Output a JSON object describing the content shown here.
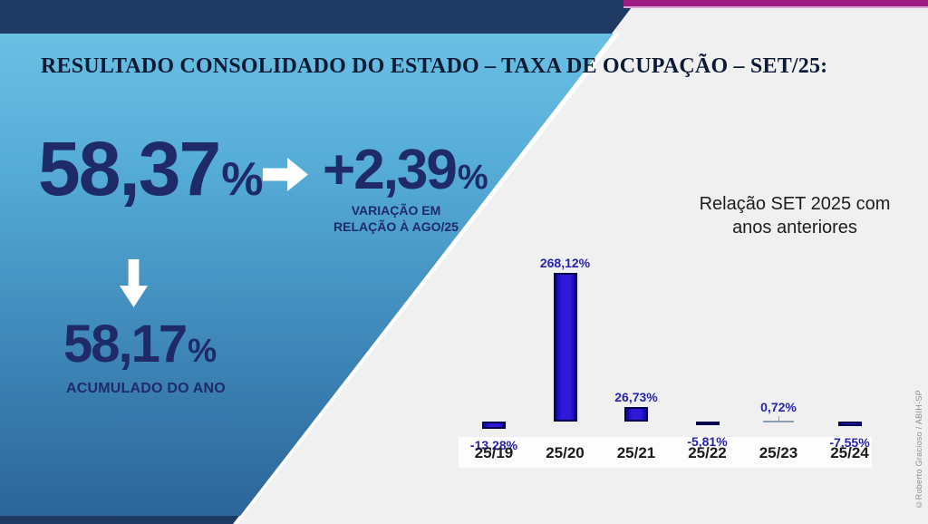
{
  "slide": {
    "title": "RESULTADO CONSOLIDADO DO ESTADO – TAXA DE OCUPAÇÃO – SET/25:",
    "credit": "©Roberto Gracioso / ABIH-SP"
  },
  "metrics": {
    "current": {
      "value": "58,37",
      "unit": "%"
    },
    "variation": {
      "value": "+2,39",
      "unit": "%",
      "caption_line1": "VARIAÇÃO EM",
      "caption_line2": "RELAÇÃO À AGO/25"
    },
    "accumulated": {
      "value": "58,17",
      "unit": "%",
      "caption": "ACUMULADO DO ANO"
    }
  },
  "chart_data": {
    "type": "bar",
    "title": "Relação SET 2025 com anos anteriores",
    "categories": [
      "25/19",
      "25/20",
      "25/21",
      "25/22",
      "25/23",
      "25/24"
    ],
    "values": [
      -13.28,
      268.12,
      26.73,
      -5.81,
      0.72,
      -7.55
    ],
    "value_labels": [
      "-13,28%",
      "268,12%",
      "26,73%",
      "-5,81%",
      "0,72%",
      "-7,55%"
    ],
    "xlabel": "",
    "ylabel": "",
    "ylim": [
      -20,
      280
    ],
    "grid": false,
    "legend": false,
    "bar_color": "#2a14cc",
    "label_color": "#2823ad"
  },
  "colors": {
    "navy_band": "#1e3a63",
    "magenta_band": "#9e1c84",
    "gradient_top": "#6fc4e6",
    "gradient_bottom": "#2b6397",
    "background": "#f0f0f1",
    "text_navy": "#1f2a68"
  }
}
